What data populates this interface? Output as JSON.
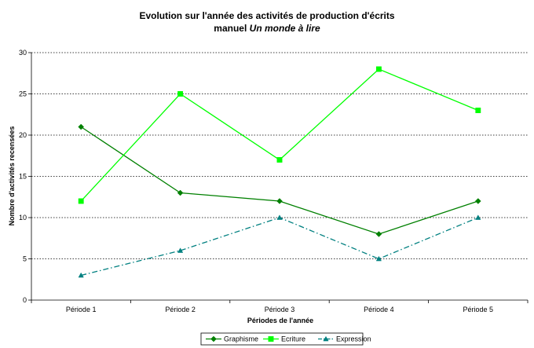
{
  "chart_data": {
    "type": "line",
    "title_line1": "Evolution sur l'année des activités de production d'écrits",
    "title_line2_prefix": "manuel ",
    "title_line2_italic": "Un monde à lire",
    "xlabel": "Périodes de l'année",
    "ylabel": "Nombre d'activités recensées",
    "categories": [
      "Période 1",
      "Période 2",
      "Période 3",
      "Période 4",
      "Période 5"
    ],
    "ylim": [
      0,
      30
    ],
    "yticks": [
      0,
      5,
      10,
      15,
      20,
      25,
      30
    ],
    "grid": "horizontal dotted",
    "legend_position": "bottom",
    "series": [
      {
        "name": "Graphisme",
        "values": [
          21,
          13,
          12,
          8,
          12
        ],
        "color": "#008000",
        "marker": "diamond",
        "dash": "solid"
      },
      {
        "name": "Ecriture",
        "values": [
          12,
          25,
          17,
          28,
          23
        ],
        "color": "#00ff00",
        "marker": "square",
        "dash": "solid"
      },
      {
        "name": "Expression",
        "values": [
          3,
          6,
          10,
          5,
          10
        ],
        "color": "#008080",
        "marker": "triangle",
        "dash": "dashdot"
      }
    ]
  }
}
